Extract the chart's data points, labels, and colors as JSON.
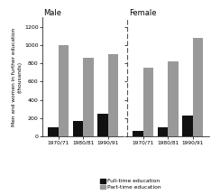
{
  "title_male": "Male",
  "title_female": "Female",
  "ylabel": "Men and women in further education\n(thousands)",
  "categories": [
    "1970/71",
    "1980/81",
    "1990/91"
  ],
  "male_fulltime": [
    100,
    170,
    245
  ],
  "male_parttime": [
    1000,
    860,
    900
  ],
  "female_fulltime": [
    60,
    100,
    230
  ],
  "female_parttime": [
    750,
    820,
    1080
  ],
  "fulltime_color": "#111111",
  "parttime_color": "#999999",
  "ylim": [
    0,
    1300
  ],
  "yticks": [
    0,
    200,
    400,
    600,
    800,
    1000,
    1200
  ],
  "legend_fulltime": "Full-time education",
  "legend_parttime": "Part-time education",
  "bar_width": 0.42,
  "background_color": "#ffffff"
}
